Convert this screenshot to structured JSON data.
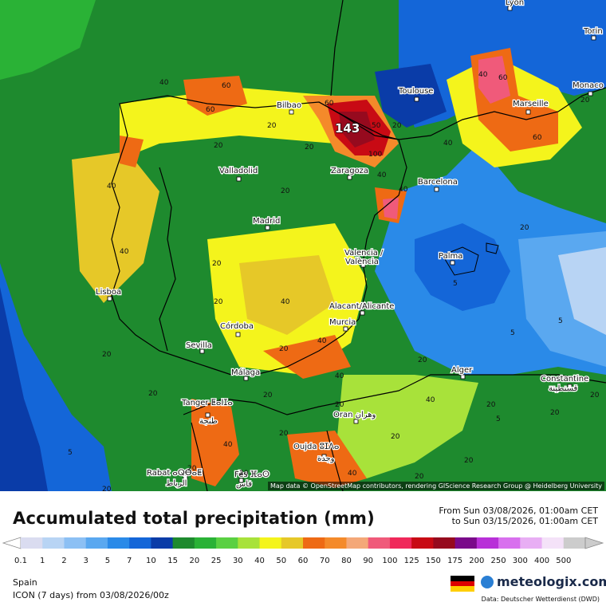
{
  "map": {
    "attribution": "Map data © OpenStreetMap contributors, rendering GIScience Research Group @ Heidelberg University",
    "max_label": "143",
    "cities": [
      {
        "name": "Lyon"
      },
      {
        "name": "Torin"
      },
      {
        "name": "Monaco"
      },
      {
        "name": "Toulouse"
      },
      {
        "name": "Marseille"
      },
      {
        "name": "Bilbao"
      },
      {
        "name": "Zaragoza"
      },
      {
        "name": "Barcelona"
      },
      {
        "name": "Valladolid"
      },
      {
        "name": "Madrid"
      },
      {
        "name": "Valencia /"
      },
      {
        "name": "València"
      },
      {
        "name": "Palma"
      },
      {
        "name": "Lisboa"
      },
      {
        "name": "Alacant/Alicante"
      },
      {
        "name": "Murcia"
      },
      {
        "name": "Córdoba"
      },
      {
        "name": "Sevilla"
      },
      {
        "name": "Málaga"
      },
      {
        "name": "Alger"
      },
      {
        "name": "Constantine"
      },
      {
        "name": "قسنطينة"
      },
      {
        "name": "Tanger ⵟⴰⵏⵊⴰ"
      },
      {
        "name": "طنجة"
      },
      {
        "name": "Oran وهران"
      },
      {
        "name": "Oujda ⵓⵊⴷⴰ"
      },
      {
        "name": "وجدة"
      },
      {
        "name": "Rabat ⴰⵕⴱⴰⵟ"
      },
      {
        "name": "الرباط"
      },
      {
        "name": "Fès ⴼⴰⵙ"
      },
      {
        "name": "فاس"
      }
    ],
    "contour_labels": [
      "40",
      "60",
      "20",
      "60",
      "50",
      "100",
      "20",
      "40",
      "20",
      "20",
      "40",
      "20",
      "40",
      "20",
      "40",
      "5",
      "20",
      "20",
      "20",
      "40",
      "20",
      "40",
      "20",
      "20",
      "40",
      "5",
      "20",
      "20",
      "20",
      "40",
      "5",
      "60",
      "20",
      "40",
      "40",
      "5",
      "20",
      "5",
      "20",
      "20",
      "20",
      "40",
      "20",
      "60",
      "20",
      "40",
      "60",
      "20",
      "20",
      "20"
    ]
  },
  "legend": {
    "title": "Accumulated total precipitation (mm)",
    "from_text": "From Sun 03/08/2026, 01:00am CET",
    "to_text": "to Sun 03/15/2026, 01:00am CET",
    "scale": [
      {
        "label": "0.1",
        "color": "#dadcf0"
      },
      {
        "label": "1",
        "color": "#b8d4f4"
      },
      {
        "label": "2",
        "color": "#8cc0f4"
      },
      {
        "label": "3",
        "color": "#5aa8f0"
      },
      {
        "label": "5",
        "color": "#2a8ae8"
      },
      {
        "label": "7",
        "color": "#1466d8"
      },
      {
        "label": "10",
        "color": "#0a3ca8"
      },
      {
        "label": "15",
        "color": "#1e8a2e"
      },
      {
        "label": "20",
        "color": "#2ab236"
      },
      {
        "label": "25",
        "color": "#5ad042"
      },
      {
        "label": "30",
        "color": "#a8e23a"
      },
      {
        "label": "40",
        "color": "#f4f41c"
      },
      {
        "label": "50",
        "color": "#e6c828"
      },
      {
        "label": "60",
        "color": "#ee6a14"
      },
      {
        "label": "70",
        "color": "#f48a2a"
      },
      {
        "label": "80",
        "color": "#f4a878"
      },
      {
        "label": "90",
        "color": "#f05a7a"
      },
      {
        "label": "100",
        "color": "#f0285a"
      },
      {
        "label": "125",
        "color": "#c80a14"
      },
      {
        "label": "150",
        "color": "#960a1e"
      },
      {
        "label": "175",
        "color": "#7a0a8a"
      },
      {
        "label": "200",
        "color": "#b830d8"
      },
      {
        "label": "250",
        "color": "#d870ee"
      },
      {
        "label": "300",
        "color": "#e8aef4"
      },
      {
        "label": "400",
        "color": "#f4e2f8"
      },
      {
        "label": "500",
        "color": "#cccccc"
      }
    ],
    "region": "Spain",
    "model": "ICON (7 days)  from  03/08/2026/00z",
    "brand": "meteologix.com",
    "source": "Data: Deutscher Wetterdienst (DWD)",
    "flag_colors": [
      "#000000",
      "#dd0000",
      "#ffce00"
    ]
  }
}
